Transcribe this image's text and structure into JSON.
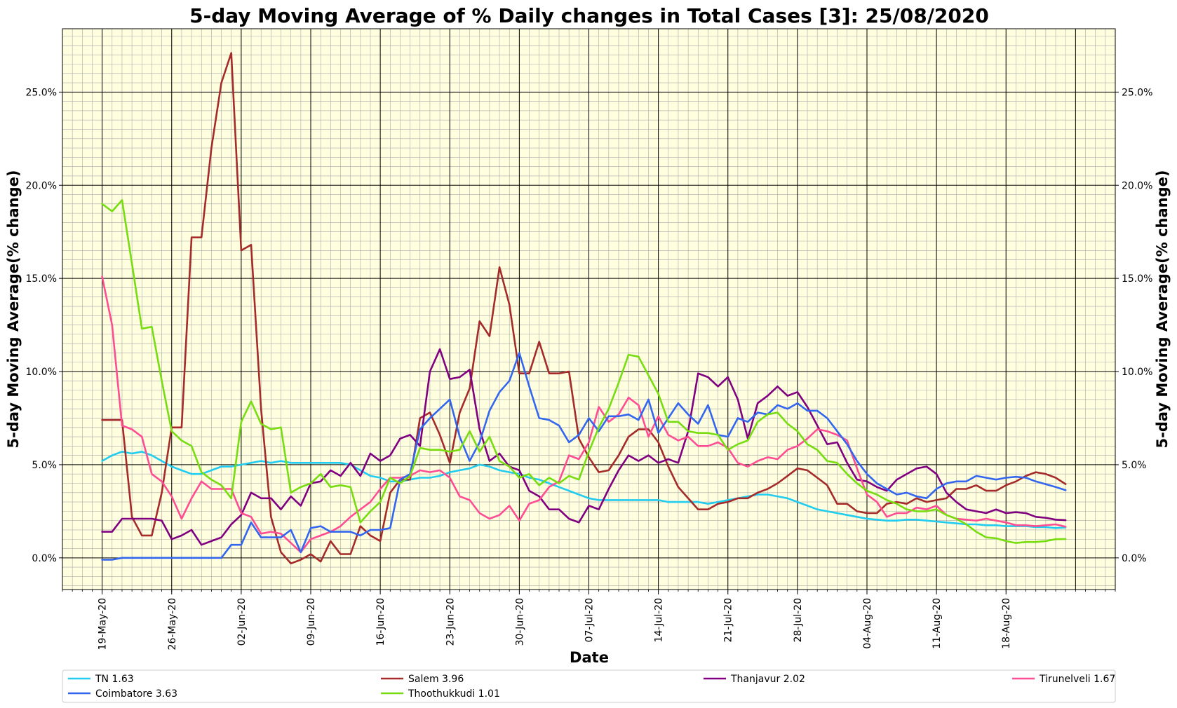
{
  "chart_data": {
    "type": "line",
    "title": "5-day Moving Average of % Daily changes in Total Cases [3]: 25/08/2020",
    "xlabel": "Date",
    "ylabel": "5-day Moving Average(% change)",
    "ylabel_right": "5-day Moving Average(% change)",
    "x_start": "2020-05-19",
    "x_end": "2020-08-25",
    "xlim_dates": [
      "2020-05-15",
      "2020-08-29"
    ],
    "ylim": [
      -1.7,
      28.4
    ],
    "y_ticks": [
      0,
      5,
      10,
      15,
      20,
      25
    ],
    "y_tick_labels": [
      "0.0%",
      "5.0%",
      "10.0%",
      "15.0%",
      "20.0%",
      "25.0%"
    ],
    "x_ticks": [
      "2020-05-19",
      "2020-05-26",
      "2020-06-02",
      "2020-06-09",
      "2020-06-16",
      "2020-06-23",
      "2020-06-30",
      "2020-07-07",
      "2020-07-14",
      "2020-07-21",
      "2020-07-28",
      "2020-08-04",
      "2020-08-11",
      "2020-08-18"
    ],
    "x_tick_labels": [
      "19-May-20",
      "26-May-20",
      "02-Jun-20",
      "09-Jun-20",
      "16-Jun-20",
      "23-Jun-20",
      "30-Jun-20",
      "07-Jul-20",
      "14-Jul-20",
      "21-Jul-20",
      "28-Jul-20",
      "04-Aug-20",
      "11-Aug-20",
      "18-Aug-20"
    ],
    "grid": true,
    "background": "#ffffe0",
    "legend_position": "bottom",
    "series": [
      {
        "name": "TN 1.63",
        "color": "#22ccee",
        "values": [
          5.2,
          5.5,
          5.7,
          5.6,
          5.7,
          5.5,
          5.2,
          4.9,
          4.7,
          4.5,
          4.5,
          4.7,
          4.9,
          4.9,
          5.0,
          5.1,
          5.2,
          5.1,
          5.2,
          5.1,
          5.1,
          5.1,
          5.1,
          5.1,
          5.1,
          5.0,
          4.7,
          4.4,
          4.3,
          4.1,
          4.1,
          4.2,
          4.3,
          4.3,
          4.4,
          4.6,
          4.7,
          4.8,
          5.0,
          4.9,
          4.7,
          4.6,
          4.5,
          4.3,
          4.2,
          4.0,
          3.8,
          3.6,
          3.4,
          3.2,
          3.1,
          3.1,
          3.1,
          3.1,
          3.1,
          3.1,
          3.1,
          3.0,
          3.0,
          3.0,
          3.0,
          2.9,
          3.0,
          3.1,
          3.2,
          3.3,
          3.4,
          3.4,
          3.3,
          3.2,
          3.0,
          2.8,
          2.6,
          2.5,
          2.4,
          2.3,
          2.2,
          2.1,
          2.05,
          2.0,
          2.0,
          2.05,
          2.05,
          2.0,
          1.95,
          1.9,
          1.85,
          1.8,
          1.8,
          1.75,
          1.75,
          1.7,
          1.7,
          1.7,
          1.65,
          1.65,
          1.6,
          1.63
        ]
      },
      {
        "name": "Salem 3.96",
        "color": "#a52a2a",
        "values": [
          7.4,
          7.4,
          7.4,
          2.2,
          1.2,
          1.2,
          3.5,
          7.0,
          7.0,
          17.2,
          17.2,
          22.0,
          25.5,
          27.1,
          16.5,
          16.8,
          8.0,
          2.2,
          0.3,
          -0.3,
          -0.1,
          0.2,
          -0.2,
          0.9,
          0.2,
          0.2,
          1.7,
          1.2,
          0.9,
          3.5,
          4.2,
          4.2,
          7.5,
          7.8,
          6.6,
          5.1,
          7.8,
          9.1,
          12.7,
          11.9,
          15.6,
          13.6,
          9.9,
          9.9,
          11.6,
          9.9,
          9.9,
          10.0,
          6.4,
          5.4,
          4.6,
          4.7,
          5.5,
          6.5,
          6.9,
          6.9,
          6.2,
          4.9,
          3.8,
          3.2,
          2.6,
          2.6,
          2.9,
          3.0,
          3.2,
          3.2,
          3.5,
          3.7,
          4.0,
          4.4,
          4.8,
          4.7,
          4.3,
          3.9,
          2.9,
          2.9,
          2.5,
          2.4,
          2.4,
          2.9,
          3.0,
          2.9,
          3.2,
          3.0,
          3.1,
          3.2,
          3.7,
          3.7,
          3.9,
          3.6,
          3.6,
          3.9,
          4.1,
          4.4,
          4.6,
          4.5,
          4.3,
          3.96
        ]
      },
      {
        "name": "Thanjavur 2.02",
        "color": "#800080",
        "values": [
          1.4,
          1.4,
          2.1,
          2.1,
          2.1,
          2.1,
          2.0,
          1.0,
          1.2,
          1.5,
          0.7,
          0.9,
          1.1,
          1.8,
          2.3,
          3.5,
          3.2,
          3.2,
          2.6,
          3.3,
          2.8,
          4.0,
          4.1,
          4.7,
          4.4,
          5.1,
          4.4,
          5.6,
          5.2,
          5.5,
          6.4,
          6.6,
          6.0,
          10.0,
          11.2,
          9.6,
          9.7,
          10.1,
          6.9,
          5.2,
          5.6,
          4.9,
          4.7,
          3.6,
          3.3,
          2.6,
          2.6,
          2.1,
          1.9,
          2.8,
          2.6,
          3.7,
          4.7,
          5.5,
          5.2,
          5.5,
          5.1,
          5.3,
          5.1,
          6.8,
          9.9,
          9.7,
          9.2,
          9.7,
          8.5,
          6.4,
          8.3,
          8.7,
          9.2,
          8.7,
          8.9,
          8.1,
          7.1,
          6.1,
          6.2,
          5.1,
          4.2,
          4.1,
          3.8,
          3.6,
          4.2,
          4.5,
          4.8,
          4.9,
          4.5,
          3.5,
          3.0,
          2.6,
          2.5,
          2.4,
          2.6,
          2.4,
          2.45,
          2.4,
          2.2,
          2.15,
          2.05,
          2.02
        ]
      },
      {
        "name": "Tirunelveli 1.67",
        "color": "#ff4d94",
        "values": [
          15.1,
          12.5,
          7.1,
          6.9,
          6.5,
          4.5,
          4.1,
          3.3,
          2.1,
          3.2,
          4.1,
          3.7,
          3.7,
          3.7,
          2.4,
          2.2,
          1.3,
          1.4,
          1.3,
          0.8,
          0.3,
          1.0,
          1.2,
          1.4,
          1.7,
          2.2,
          2.6,
          3.0,
          3.7,
          4.3,
          4.3,
          4.4,
          4.7,
          4.6,
          4.7,
          4.3,
          3.3,
          3.1,
          2.4,
          2.1,
          2.3,
          2.8,
          2.0,
          2.9,
          3.1,
          3.8,
          4.1,
          5.5,
          5.3,
          6.2,
          8.1,
          7.3,
          7.7,
          8.6,
          8.2,
          6.5,
          7.6,
          6.6,
          6.3,
          6.5,
          6.0,
          6.0,
          6.2,
          5.9,
          5.1,
          4.9,
          5.2,
          5.4,
          5.3,
          5.8,
          6.0,
          6.4,
          6.9,
          6.8,
          6.6,
          6.3,
          4.8,
          3.4,
          3.0,
          2.2,
          2.4,
          2.4,
          2.7,
          2.6,
          2.8,
          2.3,
          2.1,
          2.05,
          2.0,
          2.1,
          2.0,
          1.9,
          1.75,
          1.75,
          1.7,
          1.75,
          1.8,
          1.67
        ]
      },
      {
        "name": "Coimbatore 3.63",
        "color": "#3366ee",
        "values": [
          -0.1,
          -0.1,
          0.0,
          0.0,
          0.0,
          0.0,
          0.0,
          0.0,
          0.0,
          0.0,
          0.0,
          0.0,
          0.0,
          0.7,
          0.7,
          1.9,
          1.1,
          1.1,
          1.1,
          1.5,
          0.3,
          1.6,
          1.7,
          1.4,
          1.4,
          1.4,
          1.2,
          1.5,
          1.5,
          1.6,
          4.2,
          4.5,
          6.9,
          7.5,
          8.0,
          8.5,
          6.5,
          5.2,
          6.2,
          7.9,
          8.9,
          9.5,
          11.0,
          9.2,
          7.5,
          7.4,
          7.1,
          6.2,
          6.6,
          7.5,
          6.8,
          7.6,
          7.6,
          7.7,
          7.4,
          8.5,
          6.7,
          7.5,
          8.3,
          7.7,
          7.2,
          8.2,
          6.6,
          6.5,
          7.5,
          7.3,
          7.8,
          7.7,
          8.2,
          8.0,
          8.3,
          7.9,
          7.9,
          7.5,
          6.8,
          6.1,
          5.2,
          4.5,
          4.0,
          3.7,
          3.4,
          3.5,
          3.3,
          3.2,
          3.7,
          4.0,
          4.1,
          4.1,
          4.4,
          4.3,
          4.2,
          4.3,
          4.35,
          4.3,
          4.1,
          3.95,
          3.8,
          3.63
        ]
      },
      {
        "name": "Thoothukkudi 1.01",
        "color": "#77dd11",
        "values": [
          19.0,
          18.6,
          19.2,
          15.8,
          12.3,
          12.4,
          9.5,
          6.8,
          6.3,
          6.0,
          4.6,
          4.2,
          3.9,
          3.2,
          7.3,
          8.4,
          7.2,
          6.9,
          7.0,
          3.5,
          3.8,
          4.0,
          4.5,
          3.8,
          3.9,
          3.8,
          1.9,
          2.5,
          3.0,
          4.3,
          4.0,
          4.4,
          5.9,
          5.8,
          5.8,
          5.7,
          5.8,
          6.8,
          5.7,
          6.5,
          5.2,
          4.9,
          4.3,
          4.5,
          3.9,
          4.3,
          4.0,
          4.4,
          4.2,
          5.7,
          7.0,
          8.0,
          9.4,
          10.9,
          10.8,
          9.8,
          8.8,
          7.3,
          7.3,
          6.8,
          6.7,
          6.7,
          6.6,
          5.8,
          6.1,
          6.3,
          7.3,
          7.7,
          7.8,
          7.2,
          6.8,
          6.1,
          5.8,
          5.2,
          5.1,
          4.5,
          4.0,
          3.6,
          3.4,
          3.1,
          2.9,
          2.6,
          2.5,
          2.5,
          2.6,
          2.3,
          2.1,
          1.8,
          1.4,
          1.1,
          1.05,
          0.9,
          0.8,
          0.85,
          0.85,
          0.9,
          1.0,
          1.01
        ]
      }
    ]
  }
}
